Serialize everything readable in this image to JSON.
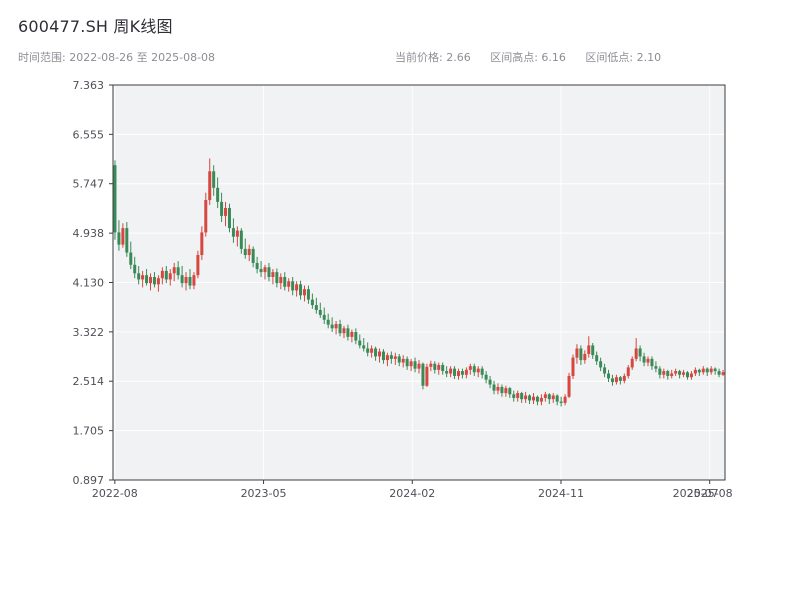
{
  "header": {
    "title": "600477.SH 周K线图",
    "subtitle_left": "时间范围: 2022-08-26 至 2025-08-08",
    "stats": [
      "当前价格: 2.66",
      "区间高点: 6.16",
      "区间低点: 2.10"
    ]
  },
  "chart_data": {
    "type": "candlestick",
    "symbol": "600477.SH",
    "title": "600477.SH 周K线图",
    "interval": "weekly",
    "date_range": [
      "2022-08-26",
      "2025-08-08"
    ],
    "current_price": 2.66,
    "range_high": 6.16,
    "range_low": 2.1,
    "ylim": [
      0.897,
      7.363
    ],
    "y_ticks": [
      0.897,
      1.705,
      2.514,
      3.322,
      4.13,
      4.938,
      5.747,
      6.555,
      7.363
    ],
    "x_tick_labels": [
      "2022-08",
      "2023-05",
      "2024-02",
      "2024-11",
      "2025-08"
    ],
    "x_overlap_label": "2025-07",
    "grid": true,
    "up_color": "#d5473f",
    "down_color": "#3a8a58",
    "plot_bg": "#f1f2f4",
    "grid_color": "#ffffff",
    "spine_color": "#3c3c42",
    "tick_color": "#4f4f58",
    "candles": [
      [
        6.05,
        6.13,
        4.83,
        4.95
      ],
      [
        4.95,
        5.15,
        4.65,
        4.75
      ],
      [
        4.75,
        5.1,
        4.7,
        5.02
      ],
      [
        5.02,
        5.12,
        4.55,
        4.62
      ],
      [
        4.62,
        4.8,
        4.35,
        4.42
      ],
      [
        4.42,
        4.55,
        4.2,
        4.28
      ],
      [
        4.28,
        4.4,
        4.1,
        4.18
      ],
      [
        4.18,
        4.32,
        4.05,
        4.25
      ],
      [
        4.25,
        4.35,
        4.08,
        4.12
      ],
      [
        4.12,
        4.28,
        4.0,
        4.22
      ],
      [
        4.22,
        4.3,
        4.05,
        4.1
      ],
      [
        4.1,
        4.25,
        3.98,
        4.2
      ],
      [
        4.2,
        4.38,
        4.1,
        4.32
      ],
      [
        4.32,
        4.4,
        4.12,
        4.18
      ],
      [
        4.18,
        4.35,
        4.08,
        4.28
      ],
      [
        4.28,
        4.45,
        4.15,
        4.38
      ],
      [
        4.38,
        4.48,
        4.18,
        4.25
      ],
      [
        4.25,
        4.4,
        4.05,
        4.12
      ],
      [
        4.12,
        4.3,
        4.0,
        4.22
      ],
      [
        4.22,
        4.35,
        4.02,
        4.08
      ],
      [
        4.08,
        4.3,
        4.02,
        4.25
      ],
      [
        4.25,
        4.65,
        4.2,
        4.58
      ],
      [
        4.58,
        5.05,
        4.5,
        4.95
      ],
      [
        4.95,
        5.6,
        4.88,
        5.48
      ],
      [
        5.48,
        6.16,
        5.4,
        5.95
      ],
      [
        5.95,
        6.05,
        5.55,
        5.68
      ],
      [
        5.68,
        5.85,
        5.35,
        5.45
      ],
      [
        5.45,
        5.6,
        5.12,
        5.22
      ],
      [
        5.22,
        5.45,
        5.05,
        5.35
      ],
      [
        5.35,
        5.42,
        4.95,
        5.02
      ],
      [
        5.02,
        5.18,
        4.78,
        4.88
      ],
      [
        4.88,
        5.05,
        4.72,
        4.98
      ],
      [
        4.98,
        5.02,
        4.6,
        4.68
      ],
      [
        4.68,
        4.85,
        4.52,
        4.58
      ],
      [
        4.58,
        4.75,
        4.48,
        4.68
      ],
      [
        4.68,
        4.72,
        4.38,
        4.45
      ],
      [
        4.45,
        4.55,
        4.28,
        4.35
      ],
      [
        4.35,
        4.48,
        4.22,
        4.3
      ],
      [
        4.3,
        4.42,
        4.18,
        4.38
      ],
      [
        4.38,
        4.45,
        4.15,
        4.22
      ],
      [
        4.22,
        4.35,
        4.1,
        4.3
      ],
      [
        4.3,
        4.36,
        4.05,
        4.12
      ],
      [
        4.12,
        4.28,
        4.02,
        4.22
      ],
      [
        4.22,
        4.3,
        4.0,
        4.06
      ],
      [
        4.06,
        4.2,
        3.98,
        4.15
      ],
      [
        4.15,
        4.22,
        3.92,
        4.0
      ],
      [
        4.0,
        4.15,
        3.9,
        4.1
      ],
      [
        4.1,
        4.16,
        3.85,
        3.92
      ],
      [
        3.92,
        4.08,
        3.82,
        4.02
      ],
      [
        4.02,
        4.08,
        3.78,
        3.85
      ],
      [
        3.85,
        3.95,
        3.7,
        3.76
      ],
      [
        3.76,
        3.88,
        3.62,
        3.68
      ],
      [
        3.68,
        3.8,
        3.55,
        3.6
      ],
      [
        3.6,
        3.72,
        3.45,
        3.52
      ],
      [
        3.52,
        3.62,
        3.38,
        3.44
      ],
      [
        3.44,
        3.56,
        3.32,
        3.38
      ],
      [
        3.38,
        3.5,
        3.28,
        3.45
      ],
      [
        3.45,
        3.52,
        3.25,
        3.3
      ],
      [
        3.3,
        3.42,
        3.22,
        3.38
      ],
      [
        3.38,
        3.44,
        3.18,
        3.24
      ],
      [
        3.24,
        3.36,
        3.15,
        3.32
      ],
      [
        3.32,
        3.38,
        3.12,
        3.18
      ],
      [
        3.18,
        3.28,
        3.05,
        3.1
      ],
      [
        3.1,
        3.22,
        3.0,
        3.05
      ],
      [
        3.05,
        3.15,
        2.92,
        2.98
      ],
      [
        2.98,
        3.1,
        2.9,
        3.05
      ],
      [
        3.05,
        3.08,
        2.85,
        2.92
      ],
      [
        2.92,
        3.05,
        2.82,
        3.0
      ],
      [
        3.0,
        3.04,
        2.8,
        2.86
      ],
      [
        2.86,
        2.98,
        2.76,
        2.94
      ],
      [
        2.94,
        3.0,
        2.8,
        2.88
      ],
      [
        2.88,
        2.98,
        2.78,
        2.92
      ],
      [
        2.92,
        2.96,
        2.76,
        2.82
      ],
      [
        2.82,
        2.94,
        2.74,
        2.88
      ],
      [
        2.88,
        2.92,
        2.7,
        2.76
      ],
      [
        2.76,
        2.88,
        2.68,
        2.84
      ],
      [
        2.84,
        2.9,
        2.66,
        2.72
      ],
      [
        2.72,
        2.86,
        2.64,
        2.8
      ],
      [
        2.8,
        2.82,
        2.38,
        2.44
      ],
      [
        2.44,
        2.8,
        2.42,
        2.75
      ],
      [
        2.75,
        2.85,
        2.68,
        2.8
      ],
      [
        2.8,
        2.84,
        2.64,
        2.7
      ],
      [
        2.7,
        2.82,
        2.62,
        2.78
      ],
      [
        2.78,
        2.82,
        2.62,
        2.68
      ],
      [
        2.68,
        2.76,
        2.58,
        2.64
      ],
      [
        2.64,
        2.76,
        2.58,
        2.72
      ],
      [
        2.72,
        2.76,
        2.55,
        2.6
      ],
      [
        2.6,
        2.72,
        2.54,
        2.68
      ],
      [
        2.68,
        2.72,
        2.56,
        2.62
      ],
      [
        2.62,
        2.74,
        2.56,
        2.7
      ],
      [
        2.7,
        2.8,
        2.62,
        2.76
      ],
      [
        2.76,
        2.8,
        2.6,
        2.66
      ],
      [
        2.66,
        2.76,
        2.58,
        2.72
      ],
      [
        2.72,
        2.76,
        2.56,
        2.62
      ],
      [
        2.62,
        2.68,
        2.48,
        2.54
      ],
      [
        2.54,
        2.6,
        2.4,
        2.46
      ],
      [
        2.46,
        2.52,
        2.3,
        2.36
      ],
      [
        2.36,
        2.48,
        2.3,
        2.42
      ],
      [
        2.42,
        2.46,
        2.26,
        2.32
      ],
      [
        2.32,
        2.44,
        2.26,
        2.4
      ],
      [
        2.4,
        2.42,
        2.24,
        2.3
      ],
      [
        2.3,
        2.36,
        2.18,
        2.24
      ],
      [
        2.24,
        2.36,
        2.18,
        2.32
      ],
      [
        2.32,
        2.34,
        2.16,
        2.22
      ],
      [
        2.22,
        2.34,
        2.16,
        2.28
      ],
      [
        2.28,
        2.3,
        2.14,
        2.2
      ],
      [
        2.2,
        2.32,
        2.14,
        2.26
      ],
      [
        2.26,
        2.28,
        2.12,
        2.18
      ],
      [
        2.18,
        2.3,
        2.12,
        2.24
      ],
      [
        2.24,
        2.34,
        2.18,
        2.3
      ],
      [
        2.3,
        2.32,
        2.14,
        2.22
      ],
      [
        2.22,
        2.32,
        2.16,
        2.28
      ],
      [
        2.28,
        2.3,
        2.12,
        2.18
      ],
      [
        2.18,
        2.26,
        2.1,
        2.16
      ],
      [
        2.16,
        2.3,
        2.12,
        2.26
      ],
      [
        2.26,
        2.65,
        2.24,
        2.6
      ],
      [
        2.6,
        2.95,
        2.55,
        2.9
      ],
      [
        2.9,
        3.12,
        2.8,
        3.05
      ],
      [
        3.05,
        3.1,
        2.78,
        2.86
      ],
      [
        2.86,
        3.02,
        2.8,
        2.96
      ],
      [
        2.96,
        3.25,
        2.9,
        3.1
      ],
      [
        3.1,
        3.14,
        2.88,
        2.94
      ],
      [
        2.94,
        3.0,
        2.78,
        2.84
      ],
      [
        2.84,
        2.9,
        2.68,
        2.74
      ],
      [
        2.74,
        2.8,
        2.58,
        2.64
      ],
      [
        2.64,
        2.7,
        2.5,
        2.56
      ],
      [
        2.56,
        2.62,
        2.44,
        2.5
      ],
      [
        2.5,
        2.62,
        2.46,
        2.58
      ],
      [
        2.58,
        2.6,
        2.46,
        2.52
      ],
      [
        2.52,
        2.64,
        2.48,
        2.6
      ],
      [
        2.6,
        2.78,
        2.56,
        2.74
      ],
      [
        2.74,
        2.92,
        2.7,
        2.88
      ],
      [
        2.88,
        3.22,
        2.84,
        3.05
      ],
      [
        3.05,
        3.1,
        2.84,
        2.92
      ],
      [
        2.92,
        2.98,
        2.76,
        2.82
      ],
      [
        2.82,
        2.92,
        2.76,
        2.88
      ],
      [
        2.88,
        2.92,
        2.7,
        2.76
      ],
      [
        2.76,
        2.84,
        2.66,
        2.72
      ],
      [
        2.72,
        2.76,
        2.56,
        2.62
      ],
      [
        2.62,
        2.72,
        2.56,
        2.68
      ],
      [
        2.68,
        2.7,
        2.54,
        2.6
      ],
      [
        2.6,
        2.7,
        2.56,
        2.64
      ],
      [
        2.64,
        2.72,
        2.6,
        2.68
      ],
      [
        2.68,
        2.7,
        2.56,
        2.62
      ],
      [
        2.62,
        2.7,
        2.58,
        2.66
      ],
      [
        2.66,
        2.68,
        2.54,
        2.58
      ],
      [
        2.58,
        2.68,
        2.54,
        2.64
      ],
      [
        2.64,
        2.74,
        2.6,
        2.7
      ],
      [
        2.7,
        2.72,
        2.6,
        2.66
      ],
      [
        2.66,
        2.76,
        2.62,
        2.72
      ],
      [
        2.72,
        2.74,
        2.6,
        2.66
      ],
      [
        2.66,
        2.76,
        2.62,
        2.72
      ],
      [
        2.72,
        2.74,
        2.62,
        2.68
      ],
      [
        2.68,
        2.72,
        2.58,
        2.62
      ],
      [
        2.62,
        2.7,
        2.6,
        2.66
      ]
    ]
  }
}
